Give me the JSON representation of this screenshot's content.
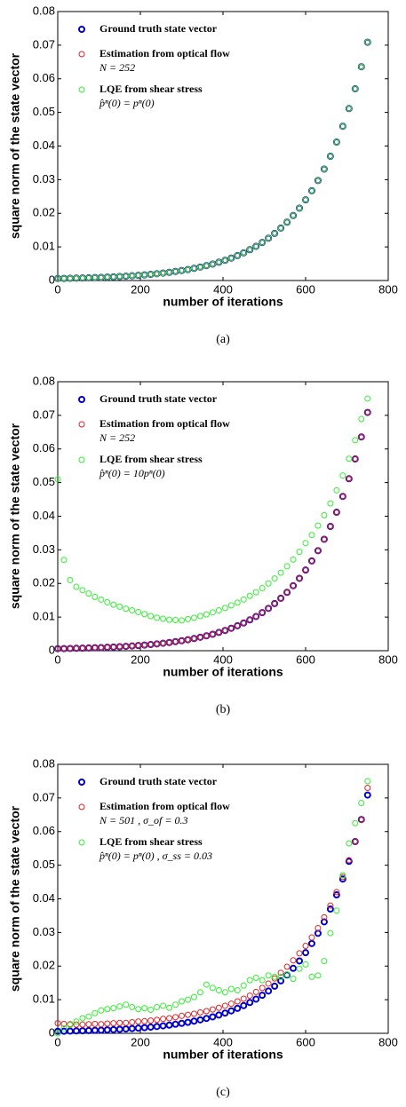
{
  "chart_data": [
    {
      "type": "scatter",
      "caption": "(a)",
      "xlabel": "number of iterations",
      "ylabel": "square norm of the state vector",
      "xlim": [
        0,
        800
      ],
      "ylim": [
        0,
        0.08
      ],
      "xticks": [
        0,
        200,
        400,
        600,
        800
      ],
      "yticks": [
        0,
        0.01,
        0.02,
        0.03,
        0.04,
        0.05,
        0.06,
        0.07,
        0.08
      ],
      "x": [
        0,
        15,
        30,
        45,
        60,
        75,
        90,
        105,
        120,
        135,
        150,
        165,
        180,
        195,
        210,
        225,
        240,
        255,
        270,
        285,
        300,
        315,
        330,
        345,
        360,
        375,
        390,
        405,
        420,
        435,
        450,
        465,
        480,
        495,
        510,
        525,
        540,
        555,
        570,
        585,
        600,
        615,
        630,
        645,
        660,
        675,
        690,
        705,
        720,
        735,
        750
      ],
      "series": [
        {
          "name": "Ground truth state vector",
          "color": "#0000cc",
          "values": [
            0.0006,
            0.00063,
            0.00067,
            0.00072,
            0.00076,
            0.00082,
            0.00088,
            0.00094,
            0.00102,
            0.0011,
            0.00119,
            0.0013,
            0.00141,
            0.00154,
            0.00168,
            0.00184,
            0.00202,
            0.00222,
            0.00244,
            0.00269,
            0.00297,
            0.00327,
            0.00362,
            0.004,
            0.00443,
            0.0049,
            0.00543,
            0.00602,
            0.00668,
            0.00742,
            0.00824,
            0.00916,
            0.01018,
            0.01132,
            0.01259,
            0.01401,
            0.0156,
            0.01736,
            0.01933,
            0.02153,
            0.02398,
            0.02671,
            0.02975,
            0.03315,
            0.03695,
            0.04118,
            0.04589,
            0.05115,
            0.05702,
            0.06357,
            0.07087
          ]
        },
        {
          "name": "Estimation from optical flow",
          "detail": "N = 252",
          "color": "#dd2222",
          "values": [
            0.0006,
            0.00063,
            0.00067,
            0.00072,
            0.00076,
            0.00082,
            0.00088,
            0.00094,
            0.00102,
            0.0011,
            0.00119,
            0.0013,
            0.00141,
            0.00154,
            0.00168,
            0.00184,
            0.00202,
            0.00222,
            0.00244,
            0.00269,
            0.00297,
            0.00327,
            0.00362,
            0.004,
            0.00443,
            0.0049,
            0.00543,
            0.00602,
            0.00668,
            0.00742,
            0.00824,
            0.00916,
            0.01018,
            0.01132,
            0.01259,
            0.01401,
            0.0156,
            0.01736,
            0.01933,
            0.02153,
            0.02398,
            0.02671,
            0.02975,
            0.03315,
            0.03695,
            0.04118,
            0.04589,
            0.05115,
            0.05702,
            0.06357,
            0.07087
          ]
        },
        {
          "name": "LQE from shear stress",
          "detail": "p̂ⁿ(0) = pⁿ(0)",
          "color": "#33ee33",
          "values": [
            0.0006,
            0.00063,
            0.00067,
            0.00072,
            0.00076,
            0.00082,
            0.00088,
            0.00094,
            0.00102,
            0.0011,
            0.00119,
            0.0013,
            0.00141,
            0.00154,
            0.00168,
            0.00184,
            0.00202,
            0.00222,
            0.00244,
            0.00269,
            0.00297,
            0.00327,
            0.00362,
            0.004,
            0.00443,
            0.0049,
            0.00543,
            0.00602,
            0.00668,
            0.00742,
            0.00824,
            0.00916,
            0.01018,
            0.01132,
            0.01259,
            0.01401,
            0.0156,
            0.01736,
            0.01933,
            0.02153,
            0.02398,
            0.02671,
            0.02975,
            0.03315,
            0.03695,
            0.04118,
            0.04589,
            0.05115,
            0.05702,
            0.06357,
            0.07087
          ]
        }
      ]
    },
    {
      "type": "scatter",
      "caption": "(b)",
      "xlabel": "number of iterations",
      "ylabel": "square norm of the state vector",
      "xlim": [
        0,
        800
      ],
      "ylim": [
        0,
        0.08
      ],
      "xticks": [
        0,
        200,
        400,
        600,
        800
      ],
      "yticks": [
        0,
        0.01,
        0.02,
        0.03,
        0.04,
        0.05,
        0.06,
        0.07,
        0.08
      ],
      "x": [
        0,
        15,
        30,
        45,
        60,
        75,
        90,
        105,
        120,
        135,
        150,
        165,
        180,
        195,
        210,
        225,
        240,
        255,
        270,
        285,
        300,
        315,
        330,
        345,
        360,
        375,
        390,
        405,
        420,
        435,
        450,
        465,
        480,
        495,
        510,
        525,
        540,
        555,
        570,
        585,
        600,
        615,
        630,
        645,
        660,
        675,
        690,
        705,
        720,
        735,
        750
      ],
      "series": [
        {
          "name": "Ground truth state vector",
          "color": "#0000cc",
          "values": [
            0.0006,
            0.00063,
            0.00067,
            0.00072,
            0.00076,
            0.00082,
            0.00088,
            0.00094,
            0.00102,
            0.0011,
            0.00119,
            0.0013,
            0.00141,
            0.00154,
            0.00168,
            0.00184,
            0.00202,
            0.00222,
            0.00244,
            0.00269,
            0.00297,
            0.00327,
            0.00362,
            0.004,
            0.00443,
            0.0049,
            0.00543,
            0.00602,
            0.00668,
            0.00742,
            0.00824,
            0.00916,
            0.01018,
            0.01132,
            0.01259,
            0.01401,
            0.0156,
            0.01736,
            0.01933,
            0.02153,
            0.02398,
            0.02671,
            0.02975,
            0.03315,
            0.03695,
            0.04118,
            0.04589,
            0.05115,
            0.05702,
            0.06357,
            0.07087
          ]
        },
        {
          "name": "Estimation from optical flow",
          "detail": "N = 252",
          "color": "#dd2222",
          "values": [
            0.0006,
            0.00063,
            0.00067,
            0.00072,
            0.00076,
            0.00082,
            0.00088,
            0.00094,
            0.00102,
            0.0011,
            0.00119,
            0.0013,
            0.00141,
            0.00154,
            0.00168,
            0.00184,
            0.00202,
            0.00222,
            0.00244,
            0.00269,
            0.00297,
            0.00327,
            0.00362,
            0.004,
            0.00443,
            0.0049,
            0.00543,
            0.00602,
            0.00668,
            0.00742,
            0.00824,
            0.00916,
            0.01018,
            0.01132,
            0.01259,
            0.01401,
            0.0156,
            0.01736,
            0.01933,
            0.02153,
            0.02398,
            0.02671,
            0.02975,
            0.03315,
            0.03695,
            0.04118,
            0.04589,
            0.05115,
            0.05702,
            0.06357,
            0.07087
          ]
        },
        {
          "name": "LQE from shear stress",
          "detail": "p̂ⁿ(0) = 10pⁿ(0)",
          "color": "#33ee33",
          "values": [
            0.051,
            0.027,
            0.021,
            0.019,
            0.018,
            0.017,
            0.016,
            0.0152,
            0.0144,
            0.0137,
            0.0131,
            0.0125,
            0.012,
            0.0115,
            0.0109,
            0.0103,
            0.0098,
            0.0095,
            0.0092,
            0.0091,
            0.009,
            0.0094,
            0.0098,
            0.0103,
            0.0108,
            0.0114,
            0.012,
            0.0127,
            0.0135,
            0.0143,
            0.0152,
            0.0163,
            0.0174,
            0.0186,
            0.02,
            0.0215,
            0.0232,
            0.0251,
            0.0271,
            0.0294,
            0.032,
            0.0344,
            0.0372,
            0.0403,
            0.0438,
            0.0477,
            0.0521,
            0.0571,
            0.0626,
            0.0689,
            0.075
          ]
        }
      ]
    },
    {
      "type": "scatter",
      "caption": "(c)",
      "xlabel": "number of iterations",
      "ylabel": "square norm of the state vector",
      "xlim": [
        0,
        800
      ],
      "ylim": [
        0,
        0.08
      ],
      "xticks": [
        0,
        200,
        400,
        600,
        800
      ],
      "yticks": [
        0,
        0.01,
        0.02,
        0.03,
        0.04,
        0.05,
        0.06,
        0.07,
        0.08
      ],
      "x": [
        0,
        15,
        30,
        45,
        60,
        75,
        90,
        105,
        120,
        135,
        150,
        165,
        180,
        195,
        210,
        225,
        240,
        255,
        270,
        285,
        300,
        315,
        330,
        345,
        360,
        375,
        390,
        405,
        420,
        435,
        450,
        465,
        480,
        495,
        510,
        525,
        540,
        555,
        570,
        585,
        600,
        615,
        630,
        645,
        660,
        675,
        690,
        705,
        720,
        735,
        750
      ],
      "series": [
        {
          "name": "Ground truth state vector",
          "color": "#0000cc",
          "values": [
            0.0006,
            0.00063,
            0.00067,
            0.00072,
            0.00076,
            0.00082,
            0.00088,
            0.00094,
            0.00102,
            0.0011,
            0.00119,
            0.0013,
            0.00141,
            0.00154,
            0.00168,
            0.00184,
            0.00202,
            0.00222,
            0.00244,
            0.00269,
            0.00297,
            0.00327,
            0.00362,
            0.004,
            0.00443,
            0.0049,
            0.00543,
            0.00602,
            0.00668,
            0.00742,
            0.00824,
            0.00916,
            0.01018,
            0.01132,
            0.01259,
            0.01401,
            0.0156,
            0.01736,
            0.01933,
            0.02153,
            0.02398,
            0.02671,
            0.02975,
            0.03315,
            0.03695,
            0.04118,
            0.04589,
            0.05115,
            0.05702,
            0.06357,
            0.07087
          ]
        },
        {
          "name": "Estimation from optical flow",
          "detail": "N = 501 , σ_of = 0.3",
          "color": "#dd2222",
          "values": [
            0.003,
            0.0028,
            0.0027,
            0.0026,
            0.0026,
            0.0027,
            0.0028,
            0.0027,
            0.0029,
            0.003,
            0.0031,
            0.0031,
            0.0033,
            0.0035,
            0.0036,
            0.0038,
            0.004,
            0.0043,
            0.0045,
            0.0048,
            0.0052,
            0.0055,
            0.0058,
            0.0062,
            0.0066,
            0.0071,
            0.0076,
            0.0082,
            0.0088,
            0.0095,
            0.0103,
            0.0112,
            0.0123,
            0.0135,
            0.0148,
            0.0163,
            0.018,
            0.0198,
            0.0217,
            0.0238,
            0.026,
            0.0285,
            0.0313,
            0.0345,
            0.038,
            0.042,
            0.0465,
            0.0515,
            0.057,
            0.0635,
            0.073
          ]
        },
        {
          "name": "LQE from shear stress",
          "detail": "p̂ⁿ(0) = pⁿ(0) , σ_ss = 0.03",
          "color": "#33ee33",
          "values": [
            0,
            0.0015,
            0.0025,
            0.0035,
            0.0045,
            0.005,
            0.006,
            0.0068,
            0.0072,
            0.0075,
            0.008,
            0.0085,
            0.0078,
            0.0072,
            0.0075,
            0.007,
            0.0078,
            0.0082,
            0.0076,
            0.0085,
            0.0095,
            0.01,
            0.0108,
            0.0122,
            0.0145,
            0.0135,
            0.0128,
            0.0122,
            0.0132,
            0.0128,
            0.0142,
            0.0158,
            0.0165,
            0.0158,
            0.0172,
            0.0168,
            0.0168,
            0.0175,
            0.0162,
            0.0192,
            0.0205,
            0.0168,
            0.0172,
            0.0215,
            0.0298,
            0.0365,
            0.047,
            0.0565,
            0.0625,
            0.0685,
            0.075
          ]
        }
      ]
    }
  ]
}
